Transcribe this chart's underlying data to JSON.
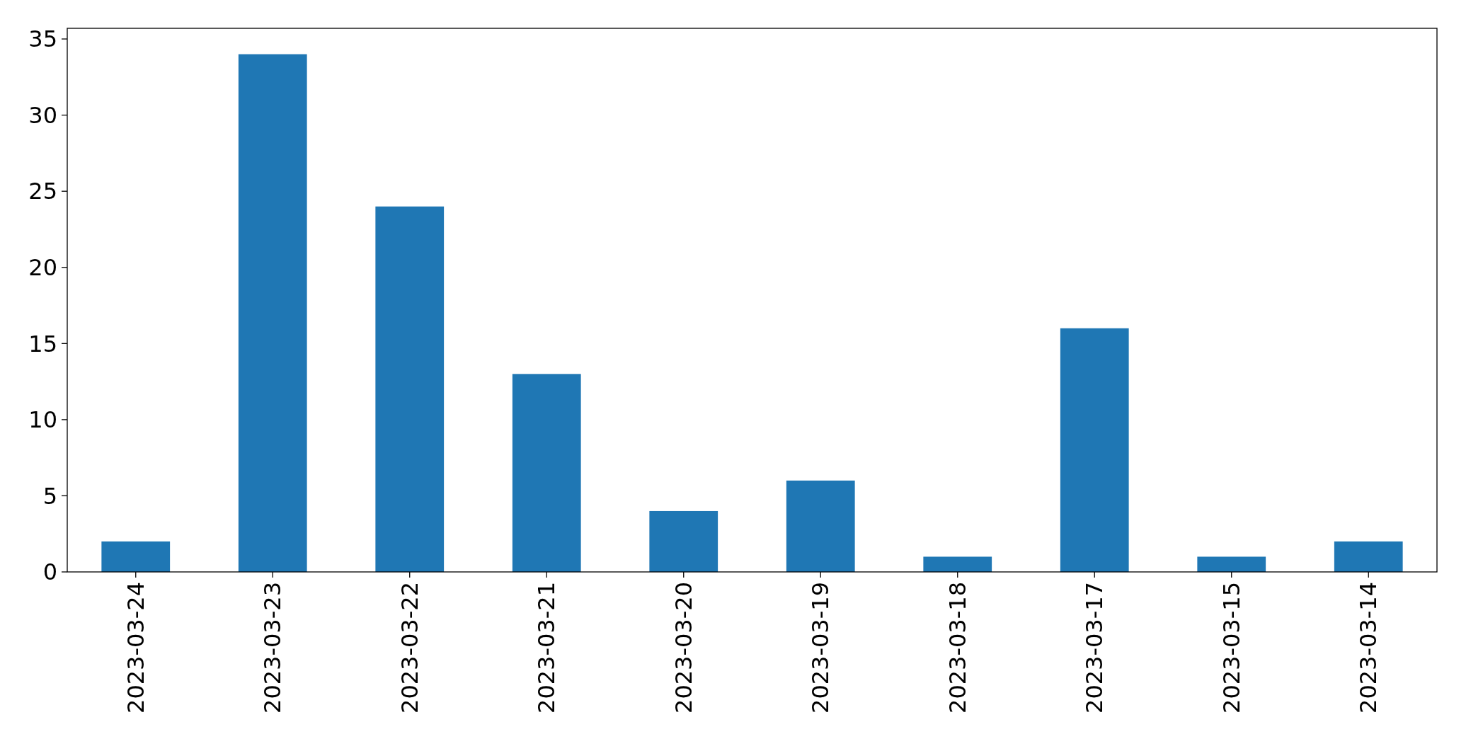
{
  "chart_data": {
    "type": "bar",
    "categories": [
      "2023-03-24",
      "2023-03-23",
      "2023-03-22",
      "2023-03-21",
      "2023-03-20",
      "2023-03-19",
      "2023-03-18",
      "2023-03-17",
      "2023-03-15",
      "2023-03-14"
    ],
    "values": [
      2,
      34,
      24,
      13,
      4,
      6,
      1,
      16,
      1,
      2
    ],
    "color": "#1f77b4",
    "ylim": [
      0,
      35.7
    ],
    "yticks": [
      0,
      5,
      10,
      15,
      20,
      25,
      30,
      35
    ],
    "grid": false
  }
}
